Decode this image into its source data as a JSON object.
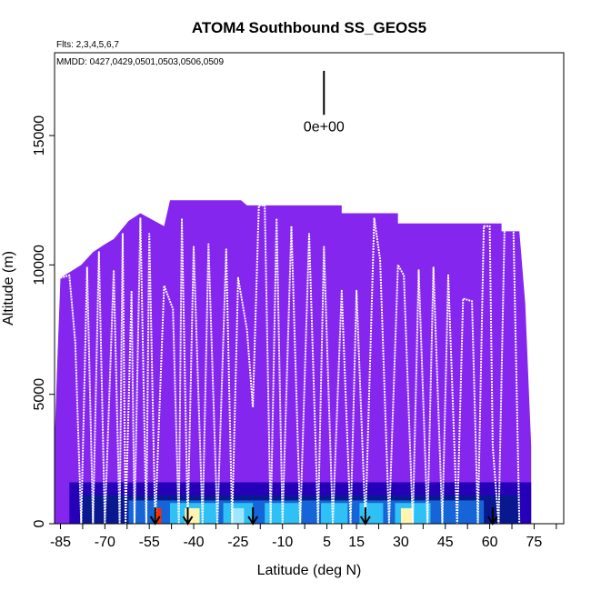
{
  "chart_data": {
    "type": "heatmap",
    "title": "ATOM4 Southbound SS_GEOS5",
    "flights_note": "Flts: 2,3,4,5,6,7",
    "dates_note": "MMDD: 0427,0429,0501,0503,0506,0509",
    "xlabel": "Latitude (deg N)",
    "ylabel": "Altitude (m)",
    "xlim": [
      -87,
      85
    ],
    "ylim": [
      0,
      18200
    ],
    "x_ticks": [
      -85,
      -70,
      -55,
      -40,
      -25,
      -10,
      5,
      15,
      30,
      45,
      60,
      75
    ],
    "x_tick_labels": [
      "-85",
      "-70",
      "-55",
      "-40",
      "-25",
      "-10",
      "5",
      "15",
      "30",
      "45",
      "60",
      "75"
    ],
    "y_ticks": [
      0,
      5000,
      10000,
      15000
    ],
    "y_tick_labels": [
      "0",
      "5000",
      "10000",
      "15000"
    ],
    "scale_label": "0e+00",
    "background_color": "#8426ee",
    "colors": {
      "background": "#8426ee",
      "deep": "#2600b8",
      "navy": "#0a1890",
      "blue": "#1565d8",
      "cyan": "#2fc0f5",
      "light": "#9ee8ff",
      "yellow": "#fff4b0",
      "red": "#ff2a00",
      "track": "#ffffff"
    },
    "domain_top": [
      {
        "x": -87,
        "y": 3200
      },
      {
        "x": -86,
        "y": 6500
      },
      {
        "x": -85,
        "y": 9500
      },
      {
        "x": -78,
        "y": 10000
      },
      {
        "x": -74,
        "y": 10500
      },
      {
        "x": -70,
        "y": 10800
      },
      {
        "x": -67,
        "y": 11000
      },
      {
        "x": -62,
        "y": 11700
      },
      {
        "x": -58,
        "y": 12000
      },
      {
        "x": -50,
        "y": 11500
      },
      {
        "x": -48,
        "y": 12500
      },
      {
        "x": -24,
        "y": 12500
      },
      {
        "x": -22,
        "y": 12300
      },
      {
        "x": 10,
        "y": 12300
      },
      {
        "x": 10,
        "y": 12000
      },
      {
        "x": 29,
        "y": 12000
      },
      {
        "x": 29,
        "y": 11600
      },
      {
        "x": 64,
        "y": 11600
      },
      {
        "x": 64,
        "y": 11300
      },
      {
        "x": 70,
        "y": 11300
      },
      {
        "x": 72,
        "y": 8500
      },
      {
        "x": 74,
        "y": 3000
      },
      {
        "x": 74,
        "y": 0
      },
      {
        "x": -87,
        "y": 0
      }
    ],
    "low_cells": [
      {
        "x0": -82,
        "x1": 74,
        "y0": 0,
        "y1": 1600,
        "c": "deep"
      },
      {
        "x0": -78,
        "x1": 70,
        "y0": 0,
        "y1": 1100,
        "c": "navy"
      },
      {
        "x0": -62,
        "x1": 58,
        "y0": 0,
        "y1": 900,
        "c": "blue"
      },
      {
        "x0": -48,
        "x1": -32,
        "y0": 0,
        "y1": 800,
        "c": "cyan"
      },
      {
        "x0": -43,
        "x1": -38,
        "y0": 0,
        "y1": 600,
        "c": "yellow"
      },
      {
        "x0": -30,
        "x1": -20,
        "y0": 0,
        "y1": 800,
        "c": "cyan"
      },
      {
        "x0": -27,
        "x1": -23,
        "y0": 0,
        "y1": 600,
        "c": "light"
      },
      {
        "x0": -16,
        "x1": -4,
        "y0": 0,
        "y1": 800,
        "c": "cyan"
      },
      {
        "x0": 3,
        "x1": 12,
        "y0": 0,
        "y1": 800,
        "c": "cyan"
      },
      {
        "x0": 16,
        "x1": 24,
        "y0": 0,
        "y1": 800,
        "c": "cyan"
      },
      {
        "x0": 28,
        "x1": 40,
        "y0": 0,
        "y1": 800,
        "c": "cyan"
      },
      {
        "x0": 30,
        "x1": 34,
        "y0": 0,
        "y1": 600,
        "c": "yellow"
      },
      {
        "x0": 44,
        "x1": 52,
        "y0": 0,
        "y1": 700,
        "c": "blue"
      },
      {
        "x0": -53,
        "x1": -51,
        "y0": 0,
        "y1": 600,
        "c": "red"
      }
    ],
    "flight_track": [
      {
        "x": -85,
        "y": 9500
      },
      {
        "x": -82,
        "y": 9600
      },
      {
        "x": -80,
        "y": 7000
      },
      {
        "x": -78,
        "y": 0
      },
      {
        "x": -76,
        "y": 9900
      },
      {
        "x": -74,
        "y": 0
      },
      {
        "x": -72,
        "y": 10500
      },
      {
        "x": -70,
        "y": 0
      },
      {
        "x": -67,
        "y": 9800
      },
      {
        "x": -65,
        "y": 0
      },
      {
        "x": -64,
        "y": 11200
      },
      {
        "x": -63,
        "y": 0
      },
      {
        "x": -61,
        "y": 9000
      },
      {
        "x": -60,
        "y": 0
      },
      {
        "x": -58,
        "y": 11800
      },
      {
        "x": -56,
        "y": 0
      },
      {
        "x": -55,
        "y": 11200
      },
      {
        "x": -53,
        "y": 0
      },
      {
        "x": -50,
        "y": 9200
      },
      {
        "x": -47,
        "y": 8300
      },
      {
        "x": -45,
        "y": 0
      },
      {
        "x": -44,
        "y": 11800
      },
      {
        "x": -42,
        "y": 0
      },
      {
        "x": -40,
        "y": 10700
      },
      {
        "x": -37,
        "y": 0
      },
      {
        "x": -35,
        "y": 10800
      },
      {
        "x": -32,
        "y": 0
      },
      {
        "x": -29,
        "y": 10600
      },
      {
        "x": -27,
        "y": 0
      },
      {
        "x": -25,
        "y": 9500
      },
      {
        "x": -22,
        "y": 7500
      },
      {
        "x": -20,
        "y": 4500
      },
      {
        "x": -18,
        "y": 12300
      },
      {
        "x": -16,
        "y": 12300
      },
      {
        "x": -14,
        "y": 0
      },
      {
        "x": -12,
        "y": 11800
      },
      {
        "x": -10,
        "y": 0
      },
      {
        "x": -7,
        "y": 11500
      },
      {
        "x": -4,
        "y": 0
      },
      {
        "x": -1,
        "y": 11200
      },
      {
        "x": 2,
        "y": 0
      },
      {
        "x": 4,
        "y": 10700
      },
      {
        "x": 7,
        "y": 0
      },
      {
        "x": 10,
        "y": 9000
      },
      {
        "x": 13,
        "y": 0
      },
      {
        "x": 15,
        "y": 9000
      },
      {
        "x": 18,
        "y": 0
      },
      {
        "x": 21,
        "y": 11800
      },
      {
        "x": 23,
        "y": 10200
      },
      {
        "x": 26,
        "y": 0
      },
      {
        "x": 29,
        "y": 10000
      },
      {
        "x": 31,
        "y": 9600
      },
      {
        "x": 34,
        "y": 0
      },
      {
        "x": 36,
        "y": 9800
      },
      {
        "x": 39,
        "y": 0
      },
      {
        "x": 41,
        "y": 9900
      },
      {
        "x": 44,
        "y": 0
      },
      {
        "x": 46,
        "y": 9600
      },
      {
        "x": 49,
        "y": 0
      },
      {
        "x": 51,
        "y": 8700
      },
      {
        "x": 54,
        "y": 8600
      },
      {
        "x": 56,
        "y": 0
      },
      {
        "x": 58,
        "y": 11500
      },
      {
        "x": 60,
        "y": 11500
      },
      {
        "x": 61,
        "y": 3000
      },
      {
        "x": 63,
        "y": 0
      },
      {
        "x": 65,
        "y": 11400
      },
      {
        "x": 68,
        "y": 11400
      },
      {
        "x": 70,
        "y": 0
      }
    ],
    "arrows_x": [
      -53,
      -42,
      -20,
      18,
      61
    ],
    "scale_bar": {
      "x": 4,
      "y0": 15800,
      "y1": 17500
    }
  }
}
